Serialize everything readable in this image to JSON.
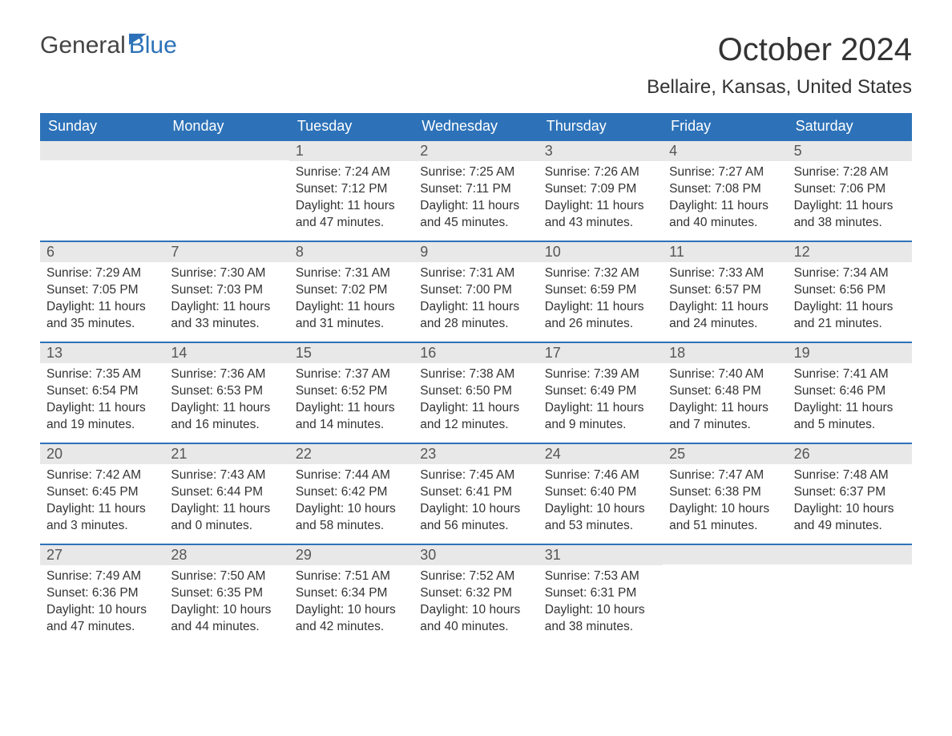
{
  "brand": {
    "part1": "General",
    "part2": "Blue"
  },
  "title": "October 2024",
  "location": "Bellaire, Kansas, United States",
  "colors": {
    "accent": "#2d72b8",
    "header_bg": "#2d72b8",
    "header_text": "#ffffff",
    "daynum_bg": "#e8e8e8",
    "text": "#333333",
    "background": "#ffffff"
  },
  "typography": {
    "title_fontsize": 40,
    "location_fontsize": 24,
    "dayhead_fontsize": 18,
    "daynum_fontsize": 18,
    "body_fontsize": 15.5
  },
  "layout": {
    "columns": 7,
    "rows": 5,
    "cell_min_height": 126
  },
  "dayheads": [
    "Sunday",
    "Monday",
    "Tuesday",
    "Wednesday",
    "Thursday",
    "Friday",
    "Saturday"
  ],
  "weeks": [
    [
      {
        "blank": true
      },
      {
        "blank": true
      },
      {
        "n": "1",
        "sunrise": "7:24 AM",
        "sunset": "7:12 PM",
        "daylight": "11 hours and 47 minutes."
      },
      {
        "n": "2",
        "sunrise": "7:25 AM",
        "sunset": "7:11 PM",
        "daylight": "11 hours and 45 minutes."
      },
      {
        "n": "3",
        "sunrise": "7:26 AM",
        "sunset": "7:09 PM",
        "daylight": "11 hours and 43 minutes."
      },
      {
        "n": "4",
        "sunrise": "7:27 AM",
        "sunset": "7:08 PM",
        "daylight": "11 hours and 40 minutes."
      },
      {
        "n": "5",
        "sunrise": "7:28 AM",
        "sunset": "7:06 PM",
        "daylight": "11 hours and 38 minutes."
      }
    ],
    [
      {
        "n": "6",
        "sunrise": "7:29 AM",
        "sunset": "7:05 PM",
        "daylight": "11 hours and 35 minutes."
      },
      {
        "n": "7",
        "sunrise": "7:30 AM",
        "sunset": "7:03 PM",
        "daylight": "11 hours and 33 minutes."
      },
      {
        "n": "8",
        "sunrise": "7:31 AM",
        "sunset": "7:02 PM",
        "daylight": "11 hours and 31 minutes."
      },
      {
        "n": "9",
        "sunrise": "7:31 AM",
        "sunset": "7:00 PM",
        "daylight": "11 hours and 28 minutes."
      },
      {
        "n": "10",
        "sunrise": "7:32 AM",
        "sunset": "6:59 PM",
        "daylight": "11 hours and 26 minutes."
      },
      {
        "n": "11",
        "sunrise": "7:33 AM",
        "sunset": "6:57 PM",
        "daylight": "11 hours and 24 minutes."
      },
      {
        "n": "12",
        "sunrise": "7:34 AM",
        "sunset": "6:56 PM",
        "daylight": "11 hours and 21 minutes."
      }
    ],
    [
      {
        "n": "13",
        "sunrise": "7:35 AM",
        "sunset": "6:54 PM",
        "daylight": "11 hours and 19 minutes."
      },
      {
        "n": "14",
        "sunrise": "7:36 AM",
        "sunset": "6:53 PM",
        "daylight": "11 hours and 16 minutes."
      },
      {
        "n": "15",
        "sunrise": "7:37 AM",
        "sunset": "6:52 PM",
        "daylight": "11 hours and 14 minutes."
      },
      {
        "n": "16",
        "sunrise": "7:38 AM",
        "sunset": "6:50 PM",
        "daylight": "11 hours and 12 minutes."
      },
      {
        "n": "17",
        "sunrise": "7:39 AM",
        "sunset": "6:49 PM",
        "daylight": "11 hours and 9 minutes."
      },
      {
        "n": "18",
        "sunrise": "7:40 AM",
        "sunset": "6:48 PM",
        "daylight": "11 hours and 7 minutes."
      },
      {
        "n": "19",
        "sunrise": "7:41 AM",
        "sunset": "6:46 PM",
        "daylight": "11 hours and 5 minutes."
      }
    ],
    [
      {
        "n": "20",
        "sunrise": "7:42 AM",
        "sunset": "6:45 PM",
        "daylight": "11 hours and 3 minutes."
      },
      {
        "n": "21",
        "sunrise": "7:43 AM",
        "sunset": "6:44 PM",
        "daylight": "11 hours and 0 minutes."
      },
      {
        "n": "22",
        "sunrise": "7:44 AM",
        "sunset": "6:42 PM",
        "daylight": "10 hours and 58 minutes."
      },
      {
        "n": "23",
        "sunrise": "7:45 AM",
        "sunset": "6:41 PM",
        "daylight": "10 hours and 56 minutes."
      },
      {
        "n": "24",
        "sunrise": "7:46 AM",
        "sunset": "6:40 PM",
        "daylight": "10 hours and 53 minutes."
      },
      {
        "n": "25",
        "sunrise": "7:47 AM",
        "sunset": "6:38 PM",
        "daylight": "10 hours and 51 minutes."
      },
      {
        "n": "26",
        "sunrise": "7:48 AM",
        "sunset": "6:37 PM",
        "daylight": "10 hours and 49 minutes."
      }
    ],
    [
      {
        "n": "27",
        "sunrise": "7:49 AM",
        "sunset": "6:36 PM",
        "daylight": "10 hours and 47 minutes."
      },
      {
        "n": "28",
        "sunrise": "7:50 AM",
        "sunset": "6:35 PM",
        "daylight": "10 hours and 44 minutes."
      },
      {
        "n": "29",
        "sunrise": "7:51 AM",
        "sunset": "6:34 PM",
        "daylight": "10 hours and 42 minutes."
      },
      {
        "n": "30",
        "sunrise": "7:52 AM",
        "sunset": "6:32 PM",
        "daylight": "10 hours and 40 minutes."
      },
      {
        "n": "31",
        "sunrise": "7:53 AM",
        "sunset": "6:31 PM",
        "daylight": "10 hours and 38 minutes."
      },
      {
        "blank": true
      },
      {
        "blank": true
      }
    ]
  ],
  "labels": {
    "sunrise": "Sunrise: ",
    "sunset": "Sunset: ",
    "daylight": "Daylight: "
  }
}
